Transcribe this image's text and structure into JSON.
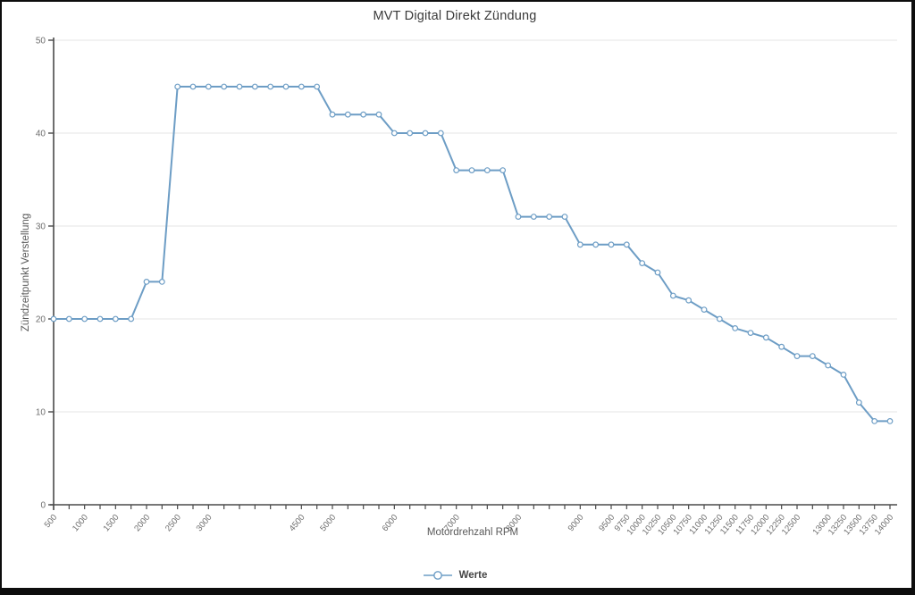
{
  "window": {
    "background": "#ffffff",
    "frame_color": "#0d0d0d"
  },
  "chart_data": {
    "type": "line",
    "title": "MVT Digital Direkt Zündung",
    "xlabel": "Motordrehzahl RPM",
    "ylabel": "Zündzeitpunkt Verstellung",
    "legend": [
      {
        "label": "Werte"
      }
    ],
    "legend_position": "bottom",
    "grid": "horizontal-only",
    "ylim": [
      0,
      50
    ],
    "yticks": [
      0,
      10,
      20,
      30,
      40,
      50
    ],
    "x": [
      500,
      750,
      1000,
      1250,
      1500,
      1750,
      2000,
      2250,
      2500,
      2750,
      3000,
      3250,
      3500,
      3750,
      4000,
      4250,
      4500,
      4750,
      5000,
      5250,
      5500,
      5750,
      6000,
      6250,
      6500,
      6750,
      7000,
      7250,
      7500,
      7750,
      8000,
      8250,
      8500,
      8750,
      9000,
      9250,
      9500,
      9750,
      10000,
      10250,
      10500,
      10750,
      11000,
      11250,
      11500,
      11750,
      12000,
      12250,
      12500,
      12750,
      13000,
      13250,
      13500,
      13750,
      14000
    ],
    "x_labeled_ticks": [
      500,
      1000,
      1500,
      2000,
      2500,
      3000,
      4500,
      5000,
      6000,
      7000,
      8000,
      9000,
      9500,
      9750,
      10000,
      10250,
      10500,
      10750,
      11000,
      11250,
      11500,
      11750,
      12000,
      12250,
      12500,
      13000,
      13250,
      13500,
      13750,
      14000
    ],
    "series": [
      {
        "name": "Werte",
        "values": [
          20,
          20,
          20,
          20,
          20,
          20,
          24,
          24,
          45,
          45,
          45,
          45,
          45,
          45,
          45,
          45,
          45,
          45,
          42,
          42,
          42,
          42,
          40,
          40,
          40,
          40,
          36,
          36,
          36,
          36,
          31,
          31,
          31,
          31,
          28,
          28,
          28,
          28,
          26,
          25,
          22.5,
          22,
          21,
          20,
          19,
          18.5,
          18,
          17,
          16,
          16,
          15,
          14,
          11,
          9,
          9
        ]
      }
    ],
    "colors": {
      "line": "#6d9dc5",
      "marker_fill": "#ffffff",
      "grid": "#e4e4e4",
      "axis": "#4a4a4a",
      "tick_label": "#6e6e6e",
      "title": "#3a3a3a",
      "legend_text": "#444444"
    }
  }
}
